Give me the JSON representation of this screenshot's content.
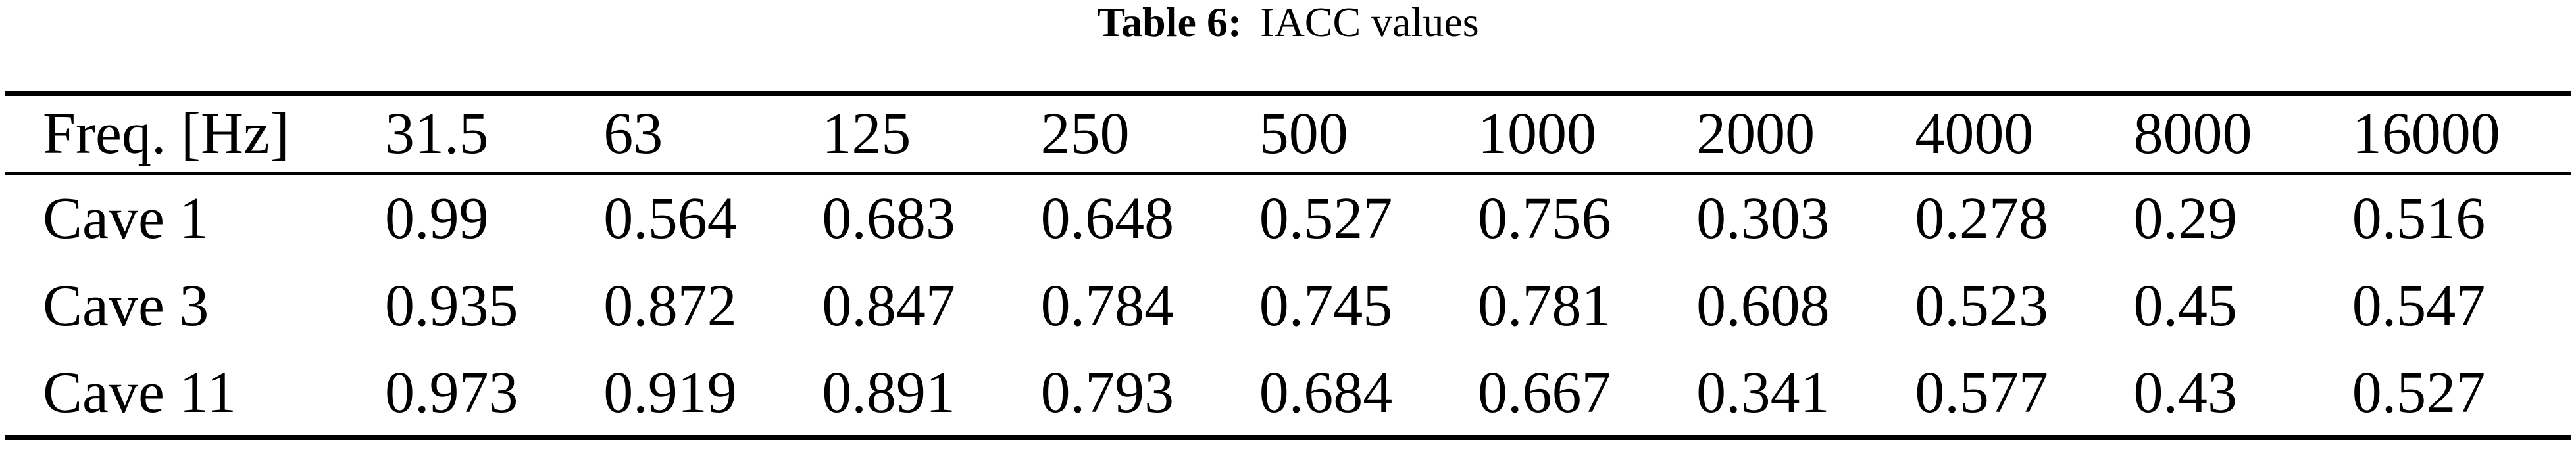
{
  "caption": {
    "label": "Table 6:",
    "title": "IACC values"
  },
  "table": {
    "header": [
      "Freq. [Hz]",
      "31.5",
      "63",
      "125",
      "250",
      "500",
      "1000",
      "2000",
      "4000",
      "8000",
      "16000"
    ],
    "rows": [
      {
        "label": "Cave 1",
        "values": [
          "0.99",
          "0.564",
          "0.683",
          "0.648",
          "0.527",
          "0.756",
          "0.303",
          "0.278",
          "0.29",
          "0.516"
        ]
      },
      {
        "label": "Cave 3",
        "values": [
          "0.935",
          "0.872",
          "0.847",
          "0.784",
          "0.745",
          "0.781",
          "0.608",
          "0.523",
          "0.45",
          "0.547"
        ]
      },
      {
        "label": "Cave 11",
        "values": [
          "0.973",
          "0.919",
          "0.891",
          "0.793",
          "0.684",
          "0.667",
          "0.341",
          "0.577",
          "0.43",
          "0.527"
        ]
      }
    ]
  },
  "colors": {
    "text": "#000000",
    "background": "#ffffff",
    "rule": "#000000"
  }
}
